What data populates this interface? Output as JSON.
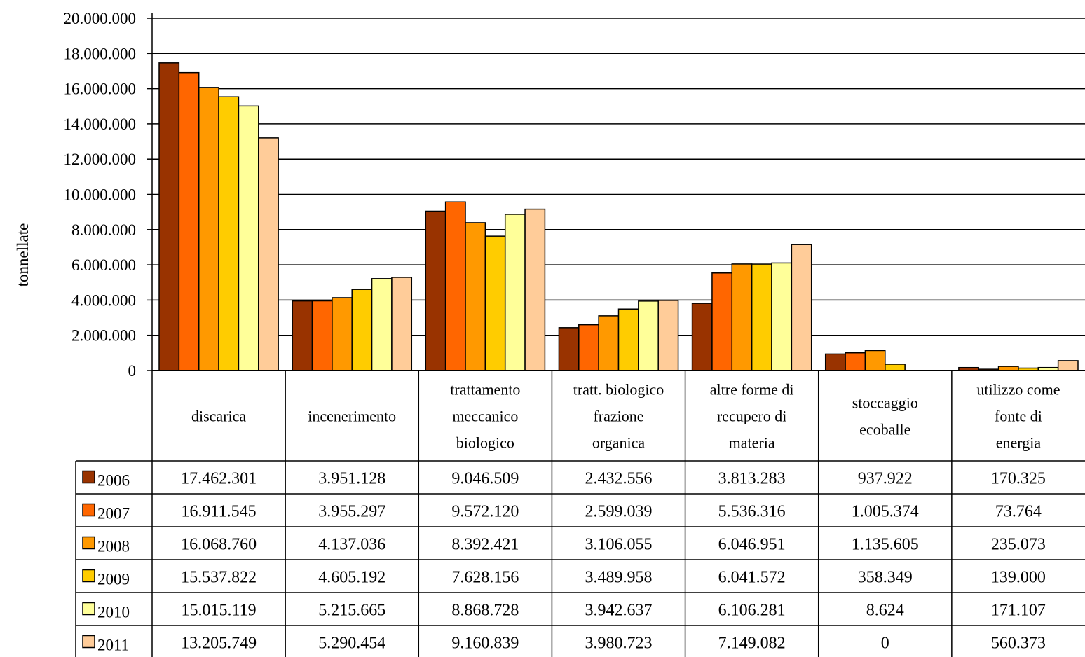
{
  "chart_data": {
    "type": "bar",
    "ylabel": "tonnellate",
    "ylim": [
      0,
      20000000
    ],
    "y_ticks": [
      "0",
      "2.000.000",
      "4.000.000",
      "6.000.000",
      "8.000.000",
      "10.000.000",
      "12.000.000",
      "14.000.000",
      "16.000.000",
      "18.000.000",
      "20.000.000"
    ],
    "grid": true,
    "legend_placement": "data-table-left",
    "categories": [
      [
        "discarica"
      ],
      [
        "incenerimento"
      ],
      [
        "trattamento",
        "meccanico",
        "biologico"
      ],
      [
        "tratt. biologico",
        "frazione",
        "organica"
      ],
      [
        "altre forme di",
        "recupero di",
        "materia"
      ],
      [
        "stoccaggio",
        "ecoballe"
      ],
      [
        "utilizzo come",
        "fonte di",
        "energia"
      ]
    ],
    "series": [
      {
        "name": "2006",
        "color": "#993300",
        "values": [
          17462301,
          3951128,
          9046509,
          2432556,
          3813283,
          937922,
          170325
        ],
        "labels": [
          "17.462.301",
          "3.951.128",
          "9.046.509",
          "2.432.556",
          "3.813.283",
          "937.922",
          "170.325"
        ]
      },
      {
        "name": "2007",
        "color": "#FF6600",
        "values": [
          16911545,
          3955297,
          9572120,
          2599039,
          5536316,
          1005374,
          73764
        ],
        "labels": [
          "16.911.545",
          "3.955.297",
          "9.572.120",
          "2.599.039",
          "5.536.316",
          "1.005.374",
          "73.764"
        ]
      },
      {
        "name": "2008",
        "color": "#FF9900",
        "values": [
          16068760,
          4137036,
          8392421,
          3106055,
          6046951,
          1135605,
          235073
        ],
        "labels": [
          "16.068.760",
          "4.137.036",
          "8.392.421",
          "3.106.055",
          "6.046.951",
          "1.135.605",
          "235.073"
        ]
      },
      {
        "name": "2009",
        "color": "#FFCC00",
        "values": [
          15537822,
          4605192,
          7628156,
          3489958,
          6041572,
          358349,
          139000
        ],
        "labels": [
          "15.537.822",
          "4.605.192",
          "7.628.156",
          "3.489.958",
          "6.041.572",
          "358.349",
          "139.000"
        ]
      },
      {
        "name": "2010",
        "color": "#FFFF99",
        "values": [
          15015119,
          5215665,
          8868728,
          3942637,
          6106281,
          8624,
          171107
        ],
        "labels": [
          "15.015.119",
          "5.215.665",
          "8.868.728",
          "3.942.637",
          "6.106.281",
          "8.624",
          "171.107"
        ]
      },
      {
        "name": "2011",
        "color": "#FFCC99",
        "values": [
          13205749,
          5290454,
          9160839,
          3980723,
          7149082,
          0,
          560373
        ],
        "labels": [
          "13.205.749",
          "5.290.454",
          "9.160.839",
          "3.980.723",
          "7.149.082",
          "0",
          "560.373"
        ]
      }
    ]
  }
}
